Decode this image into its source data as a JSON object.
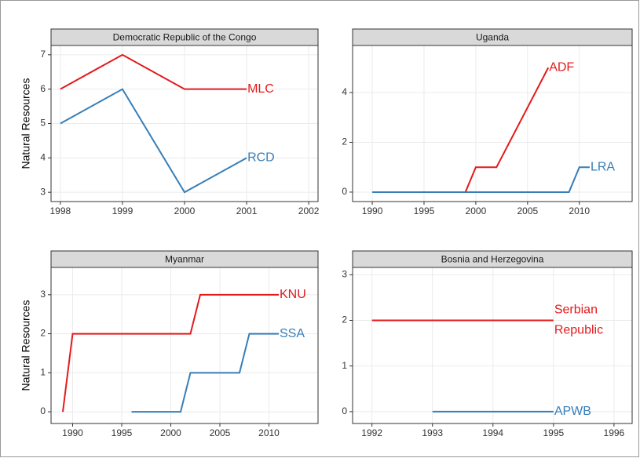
{
  "chart_data": [
    {
      "type": "line",
      "title": "Democratic Republic of the Congo",
      "ylabel": "Natural Resources",
      "xlim": [
        1997.85,
        2002.15
      ],
      "xticks": [
        1998,
        1999,
        2000,
        2001,
        2002
      ],
      "ylim": [
        2.73,
        7.27
      ],
      "yticks": [
        3,
        4,
        5,
        6,
        7
      ],
      "grid": true,
      "series": [
        {
          "name": "MLC",
          "color": "#e41a1c",
          "x": [
            1998,
            1999,
            2000,
            2001
          ],
          "values": [
            6,
            7,
            6,
            6
          ]
        },
        {
          "name": "RCD",
          "color": "#377eb8",
          "x": [
            1998,
            1999,
            2000,
            2001
          ],
          "values": [
            5,
            6,
            3,
            4
          ]
        }
      ]
    },
    {
      "type": "line",
      "title": "Uganda",
      "xlim": [
        1988.1,
        2015.1
      ],
      "xticks": [
        1990,
        1995,
        2000,
        2005,
        2010
      ],
      "ylim": [
        -0.38,
        5.89
      ],
      "yticks": [
        0,
        2,
        4
      ],
      "grid": true,
      "series": [
        {
          "name": "ADF",
          "color": "#e41a1c",
          "x": [
            1999,
            2000,
            2002,
            2007
          ],
          "values": [
            0,
            1,
            1,
            5
          ]
        },
        {
          "name": "LRA",
          "color": "#377eb8",
          "x": [
            1990,
            2009,
            2010,
            2011
          ],
          "values": [
            0,
            0,
            1,
            1
          ]
        }
      ]
    },
    {
      "type": "line",
      "title": "Myanmar",
      "ylabel": "Natural Resources",
      "xlim": [
        1987.8,
        2015.0
      ],
      "xticks": [
        1990,
        1995,
        2000,
        2005,
        2010
      ],
      "ylim": [
        -0.3,
        3.7
      ],
      "yticks": [
        0,
        1,
        2,
        3
      ],
      "grid": true,
      "series": [
        {
          "name": "KNU",
          "color": "#e41a1c",
          "x": [
            1989,
            1990,
            2002,
            2003,
            2011
          ],
          "values": [
            0,
            2,
            2,
            3,
            3
          ]
        },
        {
          "name": "SSA",
          "color": "#377eb8",
          "x": [
            1996,
            2001,
            2002,
            2007,
            2008,
            2011
          ],
          "values": [
            0,
            0,
            1,
            1,
            2,
            2
          ]
        }
      ]
    },
    {
      "type": "line",
      "title": "Bosnia and Herzegovina",
      "xlim": [
        1991.68,
        1996.3
      ],
      "xticks": [
        1992,
        1993,
        1994,
        1995,
        1996
      ],
      "ylim": [
        -0.26,
        3.16
      ],
      "yticks": [
        0,
        1,
        2,
        3
      ],
      "grid": true,
      "series": [
        {
          "name": "Serbian Republic",
          "color": "#e41a1c",
          "x": [
            1992,
            1993,
            1994,
            1995
          ],
          "values": [
            2,
            2,
            2,
            2
          ]
        },
        {
          "name": "APWB",
          "color": "#377eb8",
          "x": [
            1993,
            1994,
            1995
          ],
          "values": [
            0,
            0,
            0
          ]
        }
      ]
    }
  ]
}
